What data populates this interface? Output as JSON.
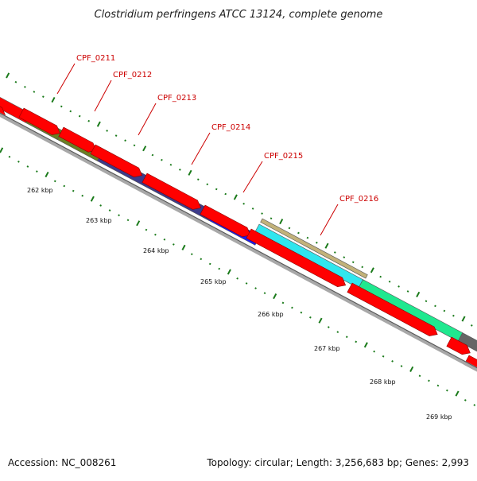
{
  "title": "Clostridium perfringens ATCC 13124, complete genome",
  "footer": {
    "accession": "Accession: NC_008261",
    "summary": "Topology: circular; Length: 3,256,683 bp; Genes: 2,993"
  },
  "colors": {
    "cds_forward": "#ff0000",
    "label": "#cc0000",
    "tick": "#1a7a1a",
    "backbone": "#a8a8a8"
  },
  "genes": [
    {
      "name": "CPF_0211",
      "color": "#6b7f22"
    },
    {
      "name": "CPF_0212",
      "color": "#6b7f22"
    },
    {
      "name": "CPF_0213",
      "color": "#3d3a8a"
    },
    {
      "name": "CPF_0214",
      "color": "#1a1aee"
    },
    {
      "name": "CPF_0215",
      "color": "#2fe6ee"
    },
    {
      "name": "CPF_0216",
      "color": "#1fe88f"
    }
  ],
  "scale_labels": [
    "262 kbp",
    "263 kbp",
    "264 kbp",
    "265 kbp",
    "266 kbp",
    "267 kbp",
    "268 kbp",
    "269 kbp"
  ]
}
